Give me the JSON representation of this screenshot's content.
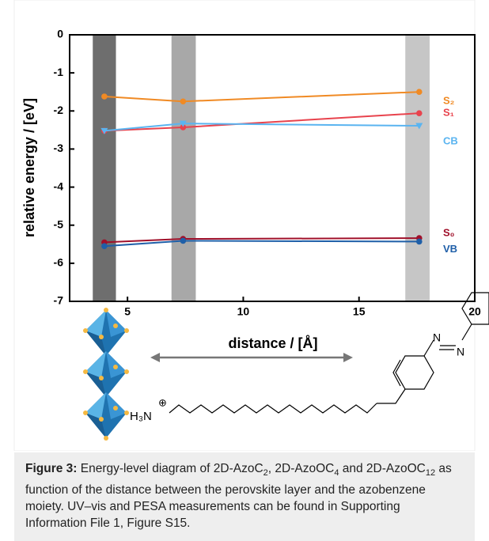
{
  "chart_data": {
    "type": "line",
    "ylabel": "relative energy / [eV]",
    "xlabel": "distance / [Å]",
    "xlim": [
      2.5,
      20
    ],
    "xticks": [
      5,
      10,
      15,
      20
    ],
    "ylim": [
      -7,
      0
    ],
    "yticks": [
      0,
      -1,
      -2,
      -3,
      -4,
      -5,
      -6,
      -7
    ],
    "bands": [
      {
        "from": 3.5,
        "to": 4.5,
        "color": "#6e6e6e"
      },
      {
        "from": 6.9,
        "to": 7.95,
        "color": "#a8a8a8"
      },
      {
        "from": 17,
        "to": 18.05,
        "color": "#c6c6c6"
      }
    ],
    "x": [
      4.0,
      7.4,
      17.6
    ],
    "series": [
      {
        "name": "S₂",
        "color": "#f08a24",
        "marker": "circle",
        "values": [
          -1.62,
          -1.75,
          -1.5
        ]
      },
      {
        "name": "S₁",
        "color": "#e8434d",
        "marker": "circle",
        "values": [
          -2.52,
          -2.43,
          -2.06
        ]
      },
      {
        "name": "CB",
        "color": "#5ab4f0",
        "marker": "triangle-down",
        "values": [
          -2.52,
          -2.33,
          -2.39
        ]
      },
      {
        "name": "S₀",
        "color": "#a0102a",
        "marker": "circle",
        "values": [
          -5.45,
          -5.36,
          -5.34
        ]
      },
      {
        "name": "VB",
        "color": "#1f5fa8",
        "marker": "circle",
        "values": [
          -5.55,
          -5.41,
          -5.43
        ]
      }
    ]
  },
  "diagram": {
    "ammonium": "H₃N",
    "charge": "⊕",
    "azo_n1": "N",
    "azo_n2": "N"
  },
  "caption": {
    "label": "Figure 3:",
    "parts": [
      "Energy-level diagram of 2D-AzoC",
      "2",
      ", 2D-AzoOC",
      "4",
      " and 2D-AzoOC",
      "12",
      " as function of the distance between the perovskite layer and the azobenzene moiety. UV–vis and PESA measurements can be found in Supporting Information File 1, Figure S15."
    ]
  }
}
